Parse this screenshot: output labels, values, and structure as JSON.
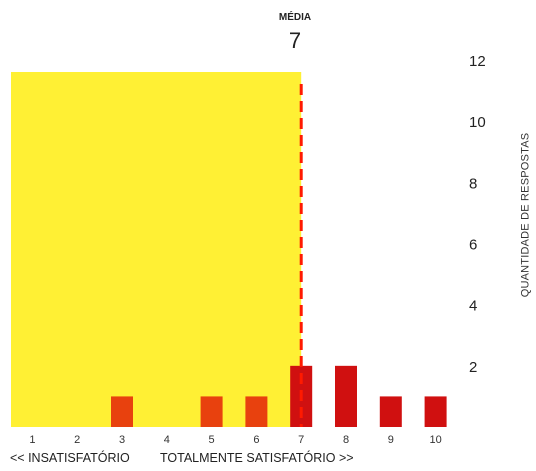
{
  "chart_data": {
    "type": "bar",
    "categories": [
      "1",
      "2",
      "3",
      "4",
      "5",
      "6",
      "7",
      "8",
      "9",
      "10"
    ],
    "values": [
      0,
      0,
      1,
      0,
      1,
      1,
      2,
      2,
      1,
      1
    ],
    "xlabel_left": "<< INSATISFATÓRIO",
    "xlabel_right": "TOTALMENTE SATISFATÓRIO >>",
    "ylabel": "QUANTIDADE DE RESPOSTAS",
    "ylim": [
      0,
      12
    ],
    "yticks": [
      2,
      4,
      6,
      8,
      10,
      12
    ],
    "mean": {
      "label": "MÉDIA",
      "value": 7
    },
    "highlight_range": [
      1,
      7
    ],
    "grid": false,
    "colors": {
      "highlight": "#fff034",
      "bar": "#d01010",
      "bar_light": "#e8410e",
      "mean_line": "#ff1a00"
    }
  }
}
